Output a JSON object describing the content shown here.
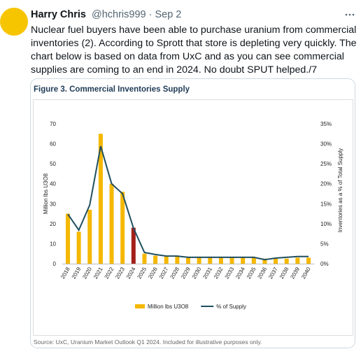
{
  "tweet": {
    "name": "Harry Chris",
    "handle_date": "@hchris999 · Sep 2",
    "text_lines": [
      "Nuclear fuel buyers have been able to purchase uranium from commercial",
      "inventories (2). According to Sprott that store is depleting very quickly. The",
      "chart below is based on data from UxC and as you can see commercial",
      "supplies are coming to an end in 2024. No doubt SPUT helped./7"
    ]
  },
  "chart_data": {
    "type": "bar_line",
    "title": "Figure 3. Commercial Inventories Supply",
    "source": "Source: UxC, Uranium Market Outlook Q1 2024. Included for illustrative purposes only.",
    "y_label": "Million lbs U3O8",
    "y2_label": "Inventories as a % of Total Supply",
    "categories": [
      "2018",
      "2019",
      "2020",
      "2021",
      "2022",
      "2023",
      "2024",
      "2025",
      "2026",
      "2027",
      "2028",
      "2029",
      "2030",
      "2031",
      "2032",
      "2033",
      "2034",
      "2035",
      "2036",
      "2037",
      "2038",
      "2039",
      "2040"
    ],
    "series": [
      {
        "name": "Million lbs U3O8",
        "type": "bar",
        "color": "#f5b800",
        "bar_colors": [
          "#f5b800",
          "#f5b800",
          "#f5b800",
          "#f5b800",
          "#f5b800",
          "#f5b800",
          "#a3201a",
          "#f5b800",
          "#f5b800",
          "#f5b800",
          "#f5b800",
          "#f5b800",
          "#f5b800",
          "#f5b800",
          "#f5b800",
          "#f5b800",
          "#f5b800",
          "#f5b800",
          "#f5b800",
          "#f5b800",
          "#f5b800",
          "#f5b800",
          "#f5b800"
        ],
        "values": [
          25,
          16,
          27,
          65,
          40,
          36,
          18,
          5,
          4,
          3.5,
          3.5,
          3,
          3,
          3,
          3,
          3,
          3,
          3,
          2.5,
          2.5,
          2.5,
          3,
          3
        ]
      },
      {
        "name": "% of Supply",
        "type": "line",
        "axis": "y2",
        "color": "#1f4e5f",
        "values": [
          12.4,
          8.4,
          14.7,
          29.4,
          20,
          17.5,
          8.9,
          2.8,
          2.3,
          1.9,
          1.9,
          1.6,
          1.6,
          1.6,
          1.6,
          1.6,
          1.6,
          1.6,
          1.0,
          1.4,
          1.6,
          1.8,
          1.8
        ]
      }
    ],
    "ylim": [
      0,
      70
    ],
    "yticks": [
      0,
      10,
      20,
      30,
      40,
      50,
      60,
      70
    ],
    "y2lim": [
      0,
      35
    ],
    "y2ticks": [
      {
        "value": 0,
        "label": "0%"
      },
      {
        "value": 5,
        "label": "5%"
      },
      {
        "value": 10,
        "label": "10%"
      },
      {
        "value": 15,
        "label": "15%"
      },
      {
        "value": 20,
        "label": "20%"
      },
      {
        "value": 25,
        "label": "25%"
      },
      {
        "value": 30,
        "label": "30%"
      },
      {
        "value": 35,
        "label": "35%"
      }
    ]
  }
}
